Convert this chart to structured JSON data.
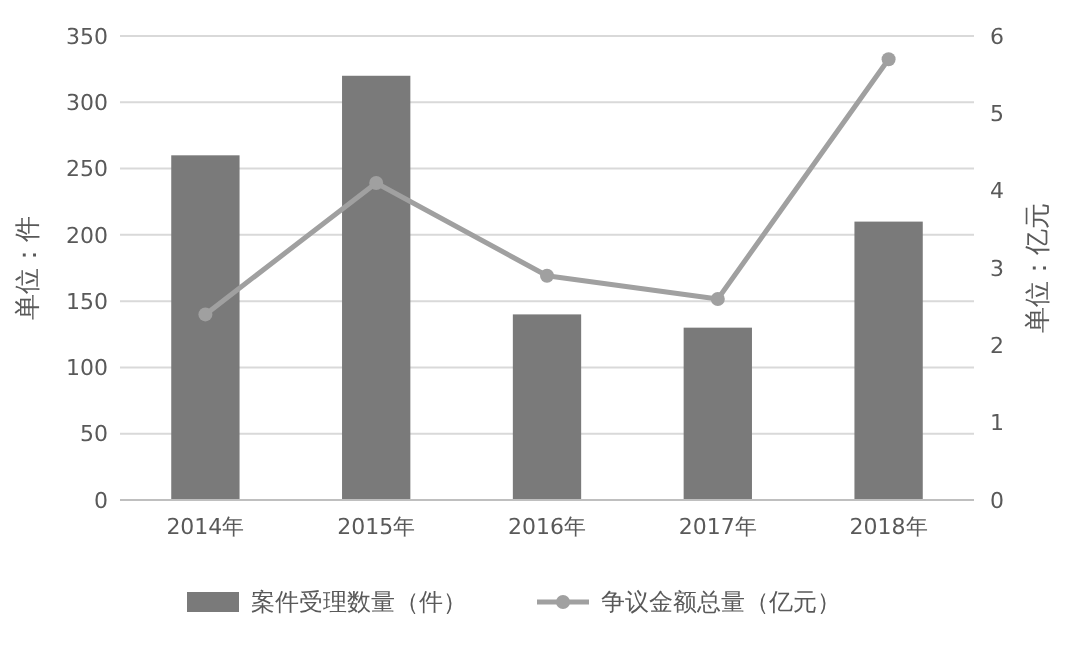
{
  "chart_data": {
    "type": "bar",
    "categories": [
      "2014年",
      "2015年",
      "2016年",
      "2017年",
      "2018年"
    ],
    "series": [
      {
        "name": "案件受理数量（件）",
        "color": "#7a7a7a",
        "values": [
          260,
          320,
          140,
          130,
          210
        ]
      },
      {
        "name": "争议金额总量（亿元）",
        "type": "line",
        "axis": "y2",
        "color": "#a0a0a0",
        "values": [
          2.4,
          4.1,
          2.9,
          2.6,
          5.7
        ]
      }
    ],
    "ylabel": "单位：件",
    "y2label": "单位：亿元",
    "ylim": [
      0,
      350
    ],
    "yticks": [
      0,
      50,
      100,
      150,
      200,
      250,
      300,
      350
    ],
    "y2lim": [
      0,
      6
    ],
    "y2ticks": [
      0,
      1,
      2,
      3,
      4,
      5,
      6
    ],
    "grid": "y",
    "legend": "bottom",
    "marker": "circle"
  }
}
